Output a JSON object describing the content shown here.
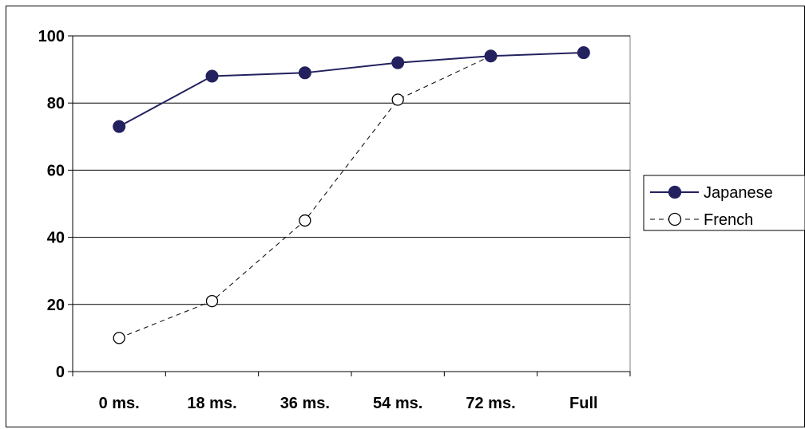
{
  "chart_data": {
    "type": "line",
    "categories": [
      "0 ms.",
      "18 ms.",
      "36 ms.",
      "54 ms.",
      "72 ms.",
      "Full"
    ],
    "series": [
      {
        "name": "Japanese",
        "values": [
          73,
          88,
          89,
          92,
          94,
          95
        ],
        "color": "#23215e",
        "marker": "filled-circle",
        "line_style": "solid"
      },
      {
        "name": "French",
        "values": [
          10,
          21,
          45,
          81,
          94,
          95
        ],
        "color": "#000000",
        "marker": "open-circle",
        "line_style": "dashed"
      }
    ],
    "yticks": [
      "0",
      "20",
      "40",
      "60",
      "80",
      "100"
    ],
    "ylim": [
      0,
      100
    ],
    "grid": "horizontal",
    "legend_position": "right",
    "title": "",
    "xlabel": "",
    "ylabel": ""
  }
}
